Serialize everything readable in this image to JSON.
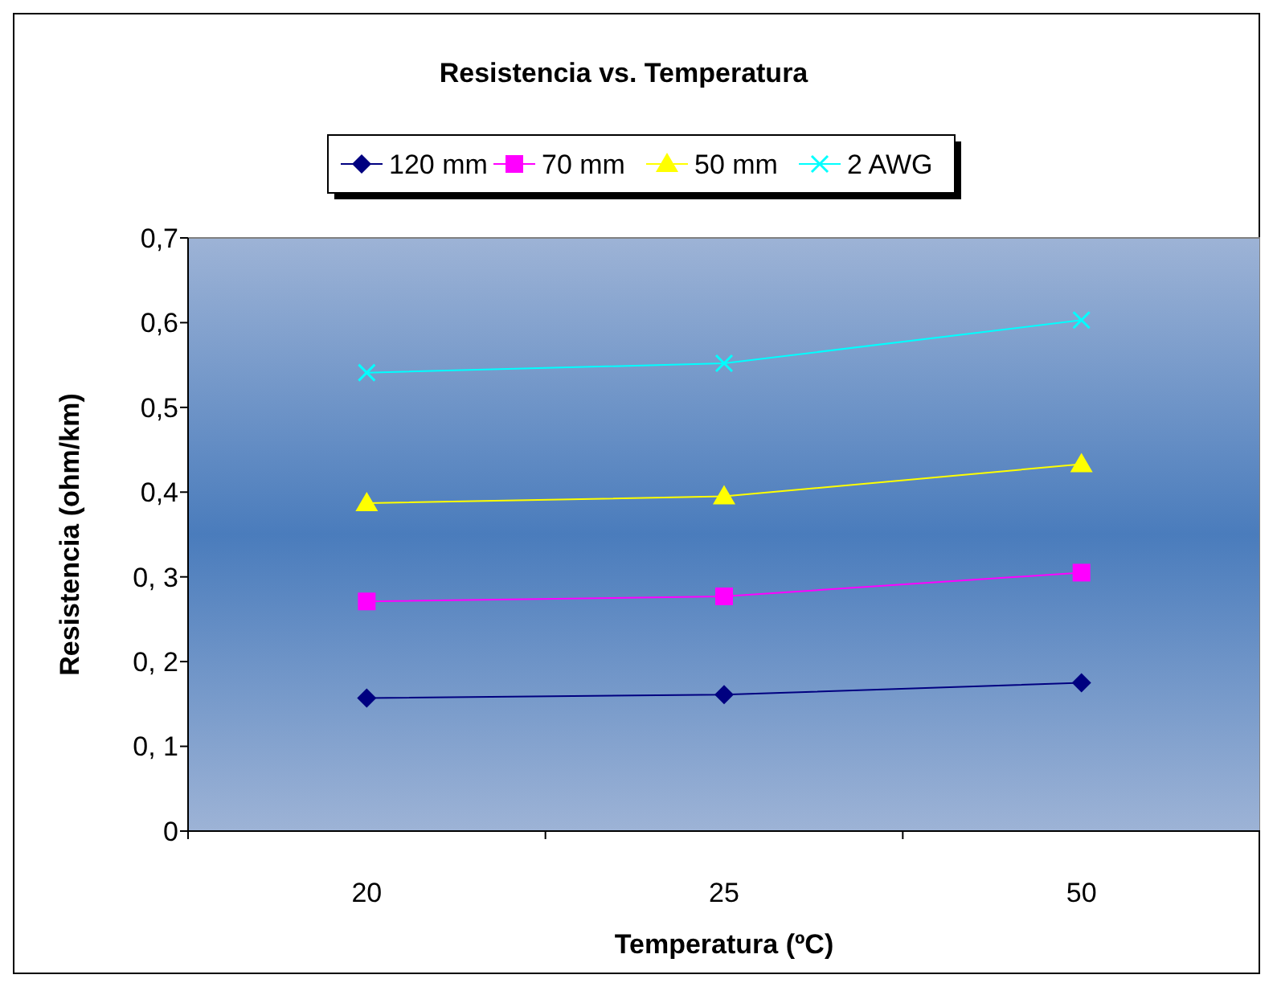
{
  "chart_data": {
    "type": "line",
    "title": "Resistencia vs. Temperatura",
    "xlabel": "Temperatura (ºC)",
    "ylabel": "Resistencia (ohm/km)",
    "categories": [
      "20",
      "25",
      "50"
    ],
    "ylim": [
      0,
      0.7
    ],
    "yticks": [
      0,
      {
        "value": 0.1,
        "label": "0, 1"
      },
      {
        "value": 0.2,
        "label": "0, 2"
      },
      {
        "value": 0.3,
        "label": "0, 3"
      },
      {
        "value": 0.4,
        "label": "0,4"
      },
      {
        "value": 0.5,
        "label": "0,5"
      },
      {
        "value": 0.6,
        "label": "0,6"
      },
      {
        "value": 0.7,
        "label": "0,7"
      }
    ],
    "grid": false,
    "legend": "top",
    "line_style": "solid",
    "series": [
      {
        "name": "120 mm",
        "color": "#000080",
        "marker": "diamond",
        "values": [
          0.157,
          0.161,
          0.175
        ]
      },
      {
        "name": "70 mm",
        "color": "#ff00ff",
        "marker": "square",
        "values": [
          0.271,
          0.277,
          0.305
        ]
      },
      {
        "name": "50 mm",
        "color": "#ffff00",
        "marker": "triangle",
        "values": [
          0.387,
          0.395,
          0.433
        ]
      },
      {
        "name": "2 AWG",
        "color": "#00ffff",
        "marker": "cross",
        "values": [
          0.541,
          0.552,
          0.603
        ]
      }
    ]
  }
}
